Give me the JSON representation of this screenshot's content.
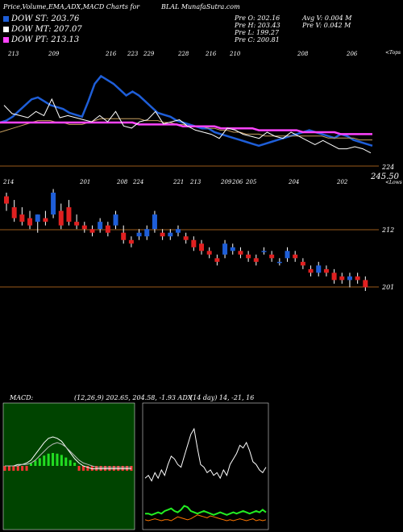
{
  "header": {
    "title": "Price,Volume,EMA,ADX,MACD Charts for",
    "symbol": "BLAL",
    "site": "MunafaSutra.com"
  },
  "legend": [
    {
      "label": "DOW ST: 203.76",
      "color": "#1e5ed8"
    },
    {
      "label": "DOW MT: 207.07",
      "color": "#ffffff"
    },
    {
      "label": "DOW PT: 213.13",
      "color": "#ff44ff"
    }
  ],
  "stats": {
    "open": "Pre O: 202.16",
    "high": "Pre H: 203.43",
    "low": "Pre L: 199.27",
    "close": "Pre C: 200.81",
    "avg_volume": "Avg V: 0.004 M",
    "prev_volume": "Pre V: 0.042 M"
  },
  "top_panel": {
    "right_label": "<Tops",
    "tick_labels": [
      "213",
      "209",
      "216",
      "223",
      "229",
      "228",
      "216",
      "210",
      "208",
      "206"
    ],
    "bottom_left_value": "224",
    "scale_top": "245.50"
  },
  "candle_panel": {
    "right_label": "<Lows",
    "tick_labels": [
      "214",
      "201",
      "208",
      "224",
      "221",
      "213",
      "209",
      "206",
      "205",
      "204",
      "202"
    ],
    "level_labels": [
      "212",
      "201"
    ]
  },
  "macd_panel": {
    "label": "MACD:",
    "values": "(12,26,9) 202.65, 204.58, -1.93 ADX",
    "adx_values": "(14 day) 14, -21, 16"
  },
  "colors": {
    "up": "#1e5ed8",
    "down": "#e02020",
    "ema_short": "#1e5ed8",
    "ema_long": "#ff44ff",
    "macd_line": "#ffffff",
    "macd_hist_pos": "#22dd22",
    "macd_hist_neg": "#ff3333",
    "adx_plus": "#22ee22",
    "adx_minus": "#ff7700"
  },
  "chart_data": [
    {
      "type": "line",
      "name": "price-ema-panel",
      "x": [
        0,
        1,
        2,
        3,
        4,
        5,
        6,
        7,
        8,
        9,
        10,
        11,
        12,
        13,
        14,
        15,
        16,
        17,
        18,
        19,
        20,
        21,
        22,
        23,
        24,
        25,
        26,
        27,
        28,
        29,
        30,
        31,
        32,
        33,
        34,
        35,
        36,
        37,
        38,
        39,
        40,
        41,
        42,
        43,
        44,
        45,
        46,
        47,
        48,
        49,
        50,
        51,
        52,
        53,
        54,
        55,
        56,
        57,
        58,
        59
      ],
      "series": [
        {
          "values": [
            235,
            236,
            238,
            241,
            244,
            247,
            248,
            246,
            244,
            243,
            242,
            240,
            239,
            238,
            246,
            255,
            259,
            257,
            255,
            252,
            249,
            251,
            249,
            246,
            243,
            240,
            239,
            238,
            236,
            235,
            234,
            233,
            232,
            232,
            230,
            229,
            228,
            227,
            226,
            225,
            224,
            223,
            224,
            225,
            226,
            227,
            228,
            229,
            230,
            231,
            230,
            229,
            228,
            227,
            229,
            228,
            226,
            225,
            224,
            223
          ]
        },
        {
          "values": [
            230,
            231,
            232,
            233,
            234,
            235,
            236,
            236,
            236,
            235,
            235,
            234,
            234,
            234,
            235,
            236,
            237,
            237,
            237,
            237,
            237,
            237,
            237,
            236,
            236,
            236,
            235,
            235,
            234,
            234,
            233,
            233,
            233,
            232,
            232,
            231,
            231,
            230,
            230,
            229,
            229,
            229,
            228,
            228,
            228,
            228,
            228,
            228,
            228,
            228,
            228,
            228,
            227,
            227,
            227,
            227,
            227,
            226,
            226,
            226
          ]
        },
        {
          "values": [
            235,
            235,
            235,
            235,
            235,
            235,
            235,
            235,
            235,
            235,
            235,
            235,
            235,
            235,
            235,
            235,
            235,
            235,
            235,
            235,
            235,
            235,
            234,
            234,
            234,
            234,
            234,
            234,
            234,
            233,
            233,
            233,
            233,
            233,
            233,
            232,
            232,
            232,
            232,
            232,
            232,
            231,
            231,
            231,
            231,
            231,
            231,
            231,
            230,
            230,
            230,
            230,
            230,
            230,
            229,
            229,
            229,
            229,
            229,
            229
          ]
        }
      ]
    },
    {
      "type": "bar",
      "name": "candles",
      "ohlc": [
        [
          214,
          215,
          210,
          212
        ],
        [
          211,
          213,
          207,
          208
        ],
        [
          209,
          211,
          206,
          207
        ],
        [
          208,
          210,
          205,
          206
        ],
        [
          207,
          209,
          204,
          209
        ],
        [
          208,
          210,
          206,
          207
        ],
        [
          209,
          216,
          208,
          215
        ],
        [
          210,
          212,
          205,
          206
        ],
        [
          211,
          213,
          206,
          207
        ],
        [
          207,
          209,
          205,
          206
        ],
        [
          206,
          207,
          204,
          205
        ],
        [
          205,
          206,
          203,
          204
        ],
        [
          205,
          208,
          204,
          207
        ],
        [
          206,
          207,
          203,
          204
        ],
        [
          206,
          210,
          205,
          209
        ],
        [
          204,
          206,
          201,
          202
        ],
        [
          202,
          203,
          200,
          201
        ],
        [
          203,
          205,
          202,
          204
        ],
        [
          203,
          206,
          202,
          205
        ],
        [
          205,
          210,
          204,
          209
        ],
        [
          204,
          205,
          202,
          203
        ],
        [
          203,
          205,
          202,
          204
        ],
        [
          204,
          206,
          203,
          205
        ],
        [
          203,
          204,
          201,
          202
        ],
        [
          202,
          203,
          199,
          200
        ],
        [
          201,
          202,
          198,
          199
        ],
        [
          199,
          200,
          197,
          198
        ],
        [
          197,
          198,
          195,
          196
        ],
        [
          198,
          202,
          197,
          201
        ],
        [
          199,
          201,
          198,
          200
        ],
        [
          199,
          200,
          197,
          198
        ],
        [
          198,
          199,
          196,
          197
        ],
        [
          197,
          198,
          195,
          196
        ],
        [
          199,
          200,
          198,
          199
        ],
        [
          198,
          199,
          196,
          197
        ],
        [
          196,
          197,
          195,
          196
        ],
        [
          197,
          200,
          196,
          199
        ],
        [
          198,
          199,
          196,
          197
        ],
        [
          196,
          197,
          194,
          195
        ],
        [
          194,
          195,
          192,
          193
        ],
        [
          193,
          196,
          192,
          195
        ],
        [
          194,
          195,
          192,
          193
        ],
        [
          193,
          194,
          190,
          191
        ],
        [
          192,
          193,
          190,
          191
        ],
        [
          191,
          193,
          189,
          192
        ],
        [
          192,
          193,
          190,
          191
        ],
        [
          191,
          192,
          188,
          189
        ]
      ]
    },
    {
      "type": "line",
      "name": "macd",
      "series": [
        {
          "values": [
            0,
            0,
            0,
            0.1,
            0.1,
            0.2,
            0.4,
            0.8,
            1.2,
            1.6,
            1.9,
            2.0,
            1.9,
            1.7,
            1.3,
            0.9,
            0.5,
            0.2,
            0,
            -0.1,
            -0.2,
            -0.2,
            -0.2,
            -0.2,
            -0.2,
            -0.2,
            -0.2,
            -0.2,
            -0.2,
            -0.2
          ]
        },
        {
          "values": [
            0,
            0,
            0,
            0,
            0.1,
            0.1,
            0.2,
            0.4,
            0.7,
            1.0,
            1.3,
            1.5,
            1.6,
            1.5,
            1.3,
            1.0,
            0.7,
            0.4,
            0.2,
            0.1,
            0,
            -0.1,
            -0.1,
            -0.1,
            -0.1,
            -0.1,
            -0.1,
            -0.1,
            -0.1,
            -0.1
          ]
        }
      ]
    },
    {
      "type": "line",
      "name": "adx",
      "series": [
        {
          "values": [
            22,
            23,
            21,
            24,
            22,
            25,
            23,
            27,
            30,
            29,
            27,
            26,
            30,
            34,
            38,
            40,
            33,
            27,
            26,
            24,
            25,
            23,
            24,
            22,
            25,
            23,
            27,
            29,
            31,
            34,
            33,
            35,
            32,
            28,
            27,
            25,
            24,
            26
          ]
        },
        {
          "values": [
            8,
            8,
            7,
            8,
            9,
            8,
            10,
            11,
            12,
            10,
            9,
            11,
            14,
            13,
            10,
            9,
            8,
            9,
            10,
            9,
            8,
            7,
            8,
            9,
            8,
            7,
            8,
            9,
            8,
            9,
            10,
            9,
            8,
            9,
            10,
            9,
            11,
            9
          ]
        },
        {
          "values": [
            6,
            5,
            6,
            7,
            6,
            5,
            6,
            6,
            5,
            7,
            9,
            8,
            7,
            6,
            7,
            9,
            11,
            10,
            9,
            8,
            10,
            9,
            8,
            7,
            6,
            5,
            6,
            5,
            6,
            7,
            6,
            5,
            6,
            7,
            5,
            6,
            5,
            6
          ]
        }
      ]
    }
  ]
}
